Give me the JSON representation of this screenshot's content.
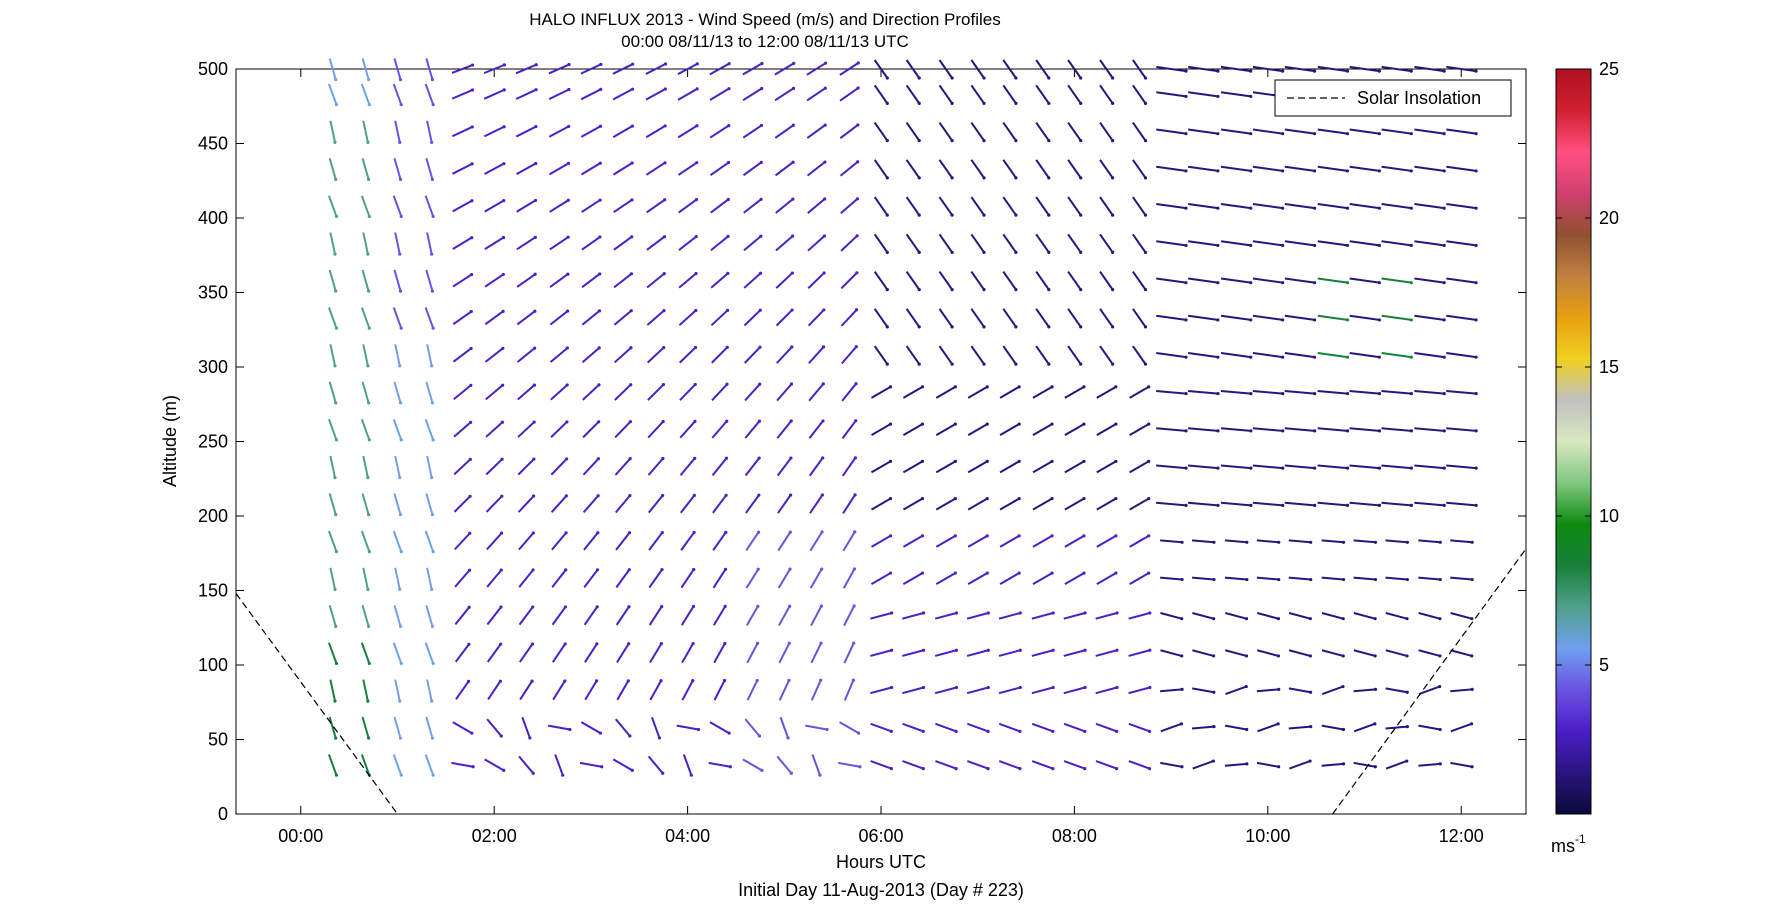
{
  "chart_data": {
    "type": "quiver",
    "title": "HALO INFLUX 2013 - Wind Speed (m/s) and Direction Profiles",
    "subtitle": "00:00 08/11/13 to 12:00 08/11/13  UTC",
    "xlabel": "Hours UTC",
    "xlabel2": "Initial Day 11-Aug-2013 (Day # 223)",
    "ylabel": "Altitude (m)",
    "xlim": [
      -0.67,
      12.67
    ],
    "ylim": [
      0,
      500
    ],
    "x_ticks": [
      0,
      2,
      4,
      6,
      8,
      10,
      12
    ],
    "x_tick_labels": [
      "00:00",
      "02:00",
      "04:00",
      "06:00",
      "08:00",
      "10:00",
      "12:00"
    ],
    "y_ticks": [
      0,
      50,
      100,
      150,
      200,
      250,
      300,
      350,
      400,
      450,
      500
    ],
    "y_tick_labels": [
      "0",
      "50",
      "100",
      "150",
      "200",
      "250",
      "300",
      "350",
      "400",
      "450",
      "500"
    ],
    "grid": false,
    "colorbar": {
      "label_main": "ms",
      "label_exp": "-1",
      "range": [
        0,
        25
      ],
      "ticks": [
        5,
        10,
        15,
        20,
        25
      ],
      "tick_labels": [
        "5",
        "10",
        "15",
        "20",
        "25"
      ],
      "colors": [
        "#0a0a3a",
        "#2a1580",
        "#4b1ec8",
        "#6a52e0",
        "#6fa0f0",
        "#4fa08a",
        "#17803a",
        "#0f8a0f",
        "#80c880",
        "#d8e8c0",
        "#c0c0c0",
        "#f0d020",
        "#e8a010",
        "#c08040",
        "#905030",
        "#d04070",
        "#ff5080",
        "#d02030",
        "#b01020"
      ]
    },
    "legend": {
      "position": "top-right",
      "entries": [
        "Solar Insolation"
      ]
    },
    "solar_insolation": {
      "left_segment": [
        [
          -0.67,
          148
        ],
        [
          1.0,
          0
        ]
      ],
      "right_segment": [
        [
          10.67,
          0
        ],
        [
          12.67,
          178
        ]
      ]
    },
    "profile_times_hours": [
      0.33,
      0.67,
      1.0,
      1.33,
      1.67,
      2.0,
      2.33,
      2.67,
      3.0,
      3.33,
      3.67,
      4.0,
      4.33,
      4.67,
      5.0,
      5.33,
      5.67,
      6.0,
      6.33,
      6.67,
      7.0,
      7.33,
      7.67,
      8.0,
      8.33,
      8.67,
      9.0,
      9.33,
      9.67,
      10.0,
      10.33,
      10.67,
      11.0,
      11.33,
      11.67,
      12.0
    ],
    "altitudes_m": [
      33,
      58,
      83,
      108,
      133,
      158,
      183,
      208,
      233,
      258,
      283,
      308,
      333,
      358,
      383,
      408,
      433,
      458,
      483,
      500
    ],
    "wind_speed_ms": {
      "early": 8,
      "morning": 3.5,
      "late": 1.5,
      "highlight_green_near_300_350_m": 8,
      "highlight_light_blue_near_150_m": 5
    }
  }
}
